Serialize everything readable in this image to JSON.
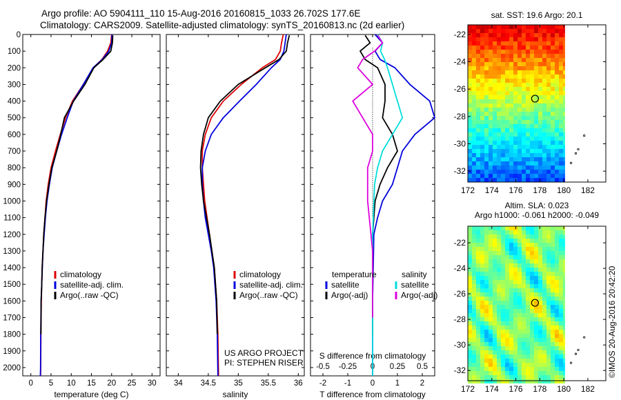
{
  "header": {
    "line1": "Argo profile: AO 5904111_110 15-Aug-2016 20160815_1033 26.702S 177.6E",
    "line2": "Climatology: CARS2009. Satellite-adjusted climatology: synTS_20160813.nc (2d earlier)"
  },
  "credit": "©IMOS 20-Aug-2016 20:42:20",
  "colors": {
    "climatology": "#dd0000",
    "satellite": "#0000dd",
    "argo": "#000000",
    "satellite_s": "#00dddd",
    "argo_s": "#dd00dd"
  },
  "chart_data": [
    {
      "type": "line",
      "id": "temperature-profile",
      "xlabel": "temperature (deg C)",
      "ylabel": "",
      "xlim": [
        -2,
        32
      ],
      "ylim": [
        2050,
        0
      ],
      "xticks": [
        0,
        5,
        10,
        15,
        20,
        25,
        30
      ],
      "yticks": [
        0,
        100,
        200,
        300,
        400,
        500,
        600,
        700,
        800,
        900,
        1000,
        1100,
        1200,
        1300,
        1400,
        1500,
        1600,
        1700,
        1800,
        1900,
        2000
      ],
      "legend": [
        "climatology",
        "satellite-adj. clim.",
        "Argo(..raw -QC)"
      ],
      "legend_position": "lower-middle",
      "series": [
        {
          "name": "climatology",
          "color_key": "climatology",
          "x": [
            20.0,
            19.8,
            19.0,
            17.6,
            15.5,
            13.0,
            10.3,
            8.6,
            7.3,
            6.1,
            5.0,
            4.3,
            3.8,
            3.5,
            3.2,
            3.0,
            2.8,
            2.7,
            2.6,
            2.5,
            2.45,
            2.4
          ],
          "y": [
            0,
            50,
            100,
            150,
            200,
            300,
            400,
            500,
            600,
            700,
            800,
            900,
            1000,
            1100,
            1200,
            1300,
            1400,
            1500,
            1600,
            1800,
            2000,
            2050
          ]
        },
        {
          "name": "satellite-adj. clim.",
          "color_key": "satellite",
          "x": [
            20.1,
            20.0,
            19.3,
            17.7,
            15.4,
            13.0,
            10.5,
            9.0,
            7.6,
            6.4,
            5.3,
            4.6,
            4.0,
            3.6,
            3.3,
            3.0,
            2.85,
            2.7,
            2.55,
            2.45,
            2.4,
            2.35
          ],
          "y": [
            0,
            50,
            100,
            150,
            200,
            300,
            400,
            500,
            600,
            700,
            800,
            900,
            1000,
            1100,
            1200,
            1300,
            1400,
            1500,
            1600,
            1800,
            2000,
            2050
          ]
        },
        {
          "name": "Argo(..raw -QC)",
          "color_key": "argo",
          "x": [
            20.3,
            20.2,
            19.8,
            17.9,
            15.6,
            13.4,
            10.6,
            8.3,
            7.4,
            6.4,
            5.2,
            4.5,
            3.9,
            3.5,
            3.2,
            3.0,
            2.8,
            2.7,
            2.55,
            2.5
          ],
          "y": [
            5,
            50,
            100,
            150,
            200,
            300,
            400,
            500,
            600,
            700,
            800,
            900,
            1000,
            1100,
            1200,
            1300,
            1400,
            1500,
            1600,
            1800
          ]
        }
      ]
    },
    {
      "type": "line",
      "id": "salinity-profile",
      "xlabel": "salinity",
      "xlim": [
        33.8,
        36.1
      ],
      "ylim": [
        2050,
        0
      ],
      "xticks": [
        34,
        34.5,
        35,
        35.5,
        36
      ],
      "legend": [
        "climatology",
        "satellite-adj. clim.",
        "Argo(..raw -QC)"
      ],
      "legend_position": "lower-right",
      "annotations": [
        "US ARGO PROJECT",
        "PI: STEPHEN RISER"
      ],
      "series": [
        {
          "name": "climatology",
          "color_key": "climatology",
          "x": [
            35.75,
            35.72,
            35.7,
            35.62,
            35.4,
            35.05,
            34.75,
            34.55,
            34.45,
            34.4,
            34.4,
            34.42,
            34.44,
            34.48,
            34.52,
            34.56,
            34.6,
            34.64,
            34.66,
            34.67
          ],
          "y": [
            0,
            50,
            100,
            150,
            200,
            300,
            400,
            500,
            600,
            700,
            800,
            900,
            1000,
            1100,
            1200,
            1300,
            1400,
            1600,
            1800,
            2050
          ]
        },
        {
          "name": "satellite-adj. clim.",
          "color_key": "satellite",
          "x": [
            35.8,
            35.78,
            35.76,
            35.7,
            35.55,
            35.3,
            35.02,
            34.75,
            34.55,
            34.45,
            34.4,
            34.4,
            34.42,
            34.45,
            34.5,
            34.55,
            34.59,
            34.63,
            34.65,
            34.66
          ],
          "y": [
            0,
            50,
            100,
            150,
            200,
            300,
            400,
            500,
            600,
            700,
            800,
            900,
            1000,
            1100,
            1200,
            1300,
            1400,
            1600,
            1800,
            2050
          ]
        },
        {
          "name": "Argo(..raw -QC)",
          "color_key": "argo",
          "x": [
            35.85,
            35.82,
            35.8,
            35.68,
            35.45,
            35.0,
            34.7,
            34.5,
            34.42,
            34.38,
            34.37,
            34.39,
            34.42,
            34.47,
            34.52,
            34.56,
            34.6,
            34.64,
            34.65
          ],
          "y": [
            5,
            50,
            100,
            150,
            200,
            300,
            400,
            500,
            600,
            700,
            800,
            900,
            1000,
            1100,
            1200,
            1300,
            1400,
            1600,
            1800
          ]
        }
      ]
    },
    {
      "type": "line",
      "id": "difference-profile",
      "xlabel": "T difference from climatology",
      "xlabel_top": "S difference from climatology",
      "xlim": [
        -2.5,
        2.5
      ],
      "ylim": [
        2050,
        0
      ],
      "xticks": [
        -2,
        -1,
        0,
        1,
        2
      ],
      "xticks_s": [
        -0.5,
        -0.25,
        0,
        0.25,
        0.5
      ],
      "legend_left_title": "temperature",
      "legend_right_title": "salinity",
      "legend_left": [
        "satellite",
        "Argo(-adj)"
      ],
      "legend_right": [
        "satellite",
        "Argo(-adj)"
      ],
      "series": [
        {
          "name": "satellite",
          "group": "temperature",
          "color_key": "satellite",
          "x": [
            0.1,
            0.4,
            0.1,
            0.3,
            0.9,
            1.5,
            2.3,
            2.5,
            1.7,
            1.2,
            1.0,
            0.8,
            0.4,
            0.2,
            0.05,
            0.0,
            0.0
          ],
          "y": [
            0,
            50,
            100,
            150,
            200,
            300,
            400,
            500,
            600,
            700,
            800,
            900,
            1000,
            1100,
            1200,
            1600,
            2050
          ]
        },
        {
          "name": "Argo(-adj)",
          "group": "temperature",
          "color_key": "argo",
          "x": [
            -0.3,
            -0.1,
            -0.5,
            -0.3,
            0.2,
            0.5,
            0.5,
            0.4,
            0.8,
            1.0,
            0.6,
            0.3,
            0.1,
            0.0,
            0.0
          ],
          "y": [
            5,
            50,
            100,
            150,
            200,
            300,
            400,
            500,
            600,
            700,
            800,
            900,
            1000,
            1200,
            1800
          ]
        },
        {
          "name": "satellite",
          "group": "salinity",
          "color_key": "satellite_s",
          "x": [
            0.05,
            0.1,
            0.08,
            0.12,
            0.15,
            0.2,
            0.25,
            0.3,
            0.2,
            0.1,
            0.05,
            0.02,
            0.0,
            0.0
          ],
          "y": [
            0,
            50,
            100,
            150,
            200,
            300,
            400,
            500,
            600,
            700,
            800,
            900,
            1200,
            2050
          ]
        },
        {
          "name": "Argo(-adj)",
          "group": "salinity",
          "color_key": "argo_s",
          "x": [
            0.05,
            0.1,
            0.02,
            -0.1,
            -0.15,
            0.0,
            -0.2,
            -0.1,
            0.0,
            0.0,
            -0.05,
            -0.05,
            0.0,
            0.0
          ],
          "y": [
            5,
            50,
            100,
            150,
            200,
            300,
            400,
            500,
            600,
            700,
            800,
            1000,
            1300,
            1700
          ]
        }
      ]
    },
    {
      "type": "heatmap",
      "id": "sst-map",
      "title": "sat. SST: 19.6 Argo: 20.1",
      "xlim": [
        172,
        183.5
      ],
      "ylim": [
        -32.8,
        -21.3
      ],
      "xticks": [
        172,
        174,
        176,
        178,
        180,
        182
      ],
      "yticks": [
        -22,
        -24,
        -26,
        -28,
        -30,
        -32
      ],
      "marker": {
        "lon": 177.6,
        "lat": -26.7
      }
    },
    {
      "type": "heatmap",
      "id": "sla-map",
      "title": "Altim. SLA: 0.023",
      "subtitle": "Argo h1000: -0.061 h2000: -0.049",
      "xlim": [
        172,
        183.5
      ],
      "ylim": [
        -32.8,
        -20.7
      ],
      "xticks": [
        172,
        174,
        176,
        178,
        180,
        182
      ],
      "yticks": [
        -22,
        -24,
        -26,
        -28,
        -30,
        -32
      ],
      "marker": {
        "lon": 177.6,
        "lat": -26.7
      }
    }
  ]
}
